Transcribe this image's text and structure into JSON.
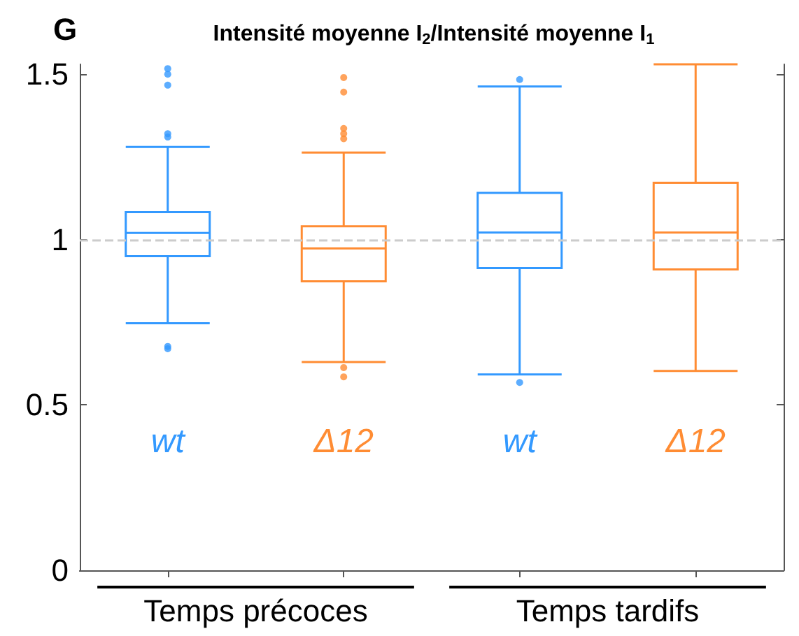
{
  "chart_data": {
    "type": "box",
    "title": "Intensité moyenne I$_{2}$/Intensité moyenne I$_{1}$",
    "categories": [
      "wt",
      "Δ12",
      "wt",
      "Δ12"
    ],
    "colors": [
      "#3399ff",
      "#ff8c33",
      "#3399ff",
      "#ff8c33"
    ],
    "boxes": [
      {
        "low": 0.747,
        "q1": 0.95,
        "median": 1.02,
        "q3": 1.083,
        "high": 1.28,
        "outliers": [
          0.677,
          0.67,
          1.32,
          1.31,
          1.517,
          1.5,
          1.467
        ]
      },
      {
        "low": 0.63,
        "q1": 0.874,
        "median": 0.973,
        "q3": 1.04,
        "high": 1.263,
        "outliers": [
          0.613,
          0.585,
          1.49,
          1.446,
          1.336,
          1.32,
          1.305
        ]
      },
      {
        "low": 0.592,
        "q1": 0.914,
        "median": 1.021,
        "q3": 1.141,
        "high": 1.463,
        "outliers": [
          1.484,
          0.568
        ]
      },
      {
        "low": 0.603,
        "q1": 0.91,
        "median": 1.021,
        "q3": 1.172,
        "high": 1.53
      }
    ],
    "ylim": [
      0,
      1.53
    ],
    "yticks": [
      0,
      0.5,
      1,
      1.5
    ],
    "grid": false,
    "ref_lines": [
      {
        "axis": "y",
        "value": 1,
        "color": "#cccccc",
        "line_style": "dashed"
      }
    ],
    "annotations": [
      "G",
      "Temps précoces",
      "Temps tardifs"
    ]
  }
}
